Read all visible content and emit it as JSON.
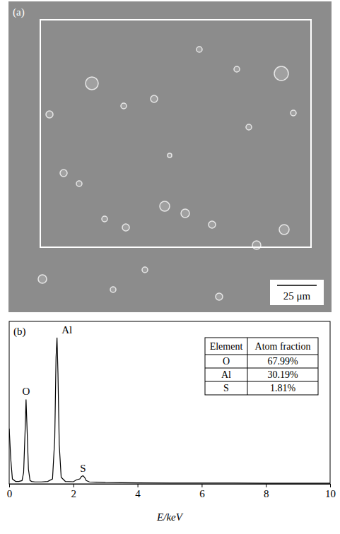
{
  "panel_a": {
    "label": "(a)",
    "scale_bar": "25 μm"
  },
  "chart_data": {
    "type": "line",
    "title": "(b)",
    "x_label": "E/keV",
    "x": [
      0,
      0.05,
      0.1,
      0.2,
      0.3,
      0.4,
      0.45,
      0.5,
      0.525,
      0.55,
      0.6,
      0.65,
      0.7,
      0.8,
      1.0,
      1.2,
      1.35,
      1.42,
      1.46,
      1.49,
      1.52,
      1.56,
      1.62,
      1.75,
      2.0,
      2.1,
      2.2,
      2.25,
      2.3,
      2.35,
      2.4,
      2.5,
      2.7,
      3,
      4,
      5,
      6,
      7,
      8,
      9,
      10
    ],
    "values": [
      34,
      15,
      3,
      1.5,
      1.5,
      2,
      7,
      35,
      52,
      38,
      9,
      2,
      1.5,
      1.2,
      1.2,
      1.5,
      3,
      28,
      78,
      90,
      68,
      24,
      4,
      1.5,
      1.3,
      2.5,
      3,
      4.5,
      5,
      4,
      2,
      1.2,
      1,
      0.8,
      0.6,
      0.5,
      0.5,
      0.5,
      0.4,
      0.4,
      0.4
    ],
    "color": "#000000",
    "xlim": [
      0,
      10
    ],
    "xticks": [
      0,
      2,
      4,
      6,
      8,
      10
    ],
    "ylim": [
      0,
      100
    ],
    "tick_labels": "x",
    "annotations": [
      {
        "text": "O",
        "x": 0.525
      },
      {
        "text": "Al",
        "x": 1.49
      },
      {
        "text": "S",
        "x": 2.3
      }
    ],
    "table": {
      "columns": [
        "Element",
        "Atom fraction"
      ],
      "rows": [
        [
          "O",
          "67.99%"
        ],
        [
          "Al",
          "30.19%"
        ],
        [
          "S",
          "1.81%"
        ]
      ]
    }
  }
}
